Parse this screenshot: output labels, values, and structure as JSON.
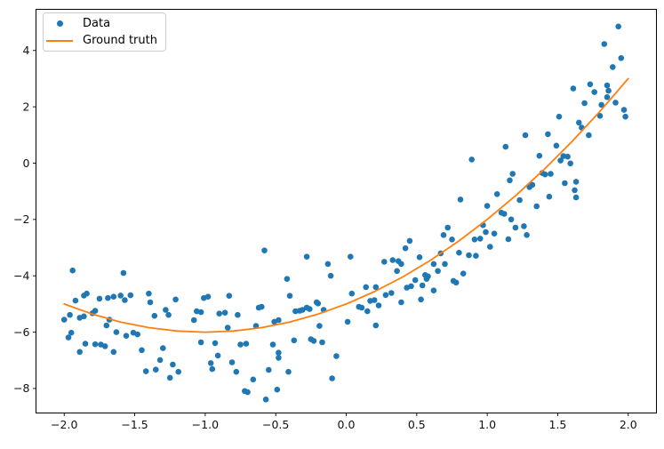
{
  "figure": {
    "background": "#ffffff",
    "legend": {
      "items": [
        {
          "label": "Data",
          "marker": "dot",
          "color": "#1f77b4"
        },
        {
          "label": "Ground truth",
          "marker": "line",
          "color": "#ff7f0e"
        }
      ]
    }
  },
  "chart_data": {
    "type": "scatter",
    "title": "",
    "xlabel": "",
    "ylabel": "",
    "grid": false,
    "legend_position": "upper left",
    "xlim": [
      -2.2,
      2.2
    ],
    "ylim": [
      -8.87,
      5.46
    ],
    "x_ticks": {
      "values": [
        -2.0,
        -1.5,
        -1.0,
        -0.5,
        0.0,
        0.5,
        1.0,
        1.5,
        2.0
      ],
      "labels": [
        "−2.0",
        "−1.5",
        "−1.0",
        "−0.5",
        "0.0",
        "0.5",
        "1.0",
        "1.5",
        "2.0"
      ]
    },
    "y_ticks": {
      "values": [
        -8,
        -6,
        -4,
        -2,
        0,
        2,
        4
      ],
      "labels": [
        "−8",
        "−6",
        "−4",
        "−2",
        "0",
        "2",
        "4"
      ]
    },
    "series": [
      {
        "name": "Data",
        "type": "scatter",
        "color": "#1f77b4",
        "marker_size": 3.3,
        "points": [
          [
            -1.92,
            -4.88
          ],
          [
            -1.86,
            -4.7
          ],
          [
            -1.84,
            -4.63
          ],
          [
            -1.75,
            -4.81
          ],
          [
            -1.69,
            -4.79
          ],
          [
            -1.65,
            -4.74
          ],
          [
            -1.6,
            -4.7
          ],
          [
            -1.57,
            -4.86
          ],
          [
            -1.53,
            -4.69
          ],
          [
            -1.4,
            -4.63
          ],
          [
            -1.39,
            -4.94
          ],
          [
            -1.21,
            -4.84
          ],
          [
            -1.28,
            -5.21
          ],
          [
            -1.36,
            -5.42
          ],
          [
            -1.26,
            -5.39
          ],
          [
            -2.0,
            -5.56
          ],
          [
            -1.96,
            -5.39
          ],
          [
            -1.89,
            -5.49
          ],
          [
            -1.86,
            -5.44
          ],
          [
            -1.8,
            -5.33
          ],
          [
            -1.78,
            -5.24
          ],
          [
            -1.95,
            -6.02
          ],
          [
            -1.97,
            -6.19
          ],
          [
            -1.7,
            -5.76
          ],
          [
            -1.68,
            -5.56
          ],
          [
            -1.63,
            -6.0
          ],
          [
            -1.56,
            -6.13
          ],
          [
            -1.51,
            -6.02
          ],
          [
            -1.48,
            -6.08
          ],
          [
            -1.85,
            -6.41
          ],
          [
            -1.78,
            -6.43
          ],
          [
            -1.74,
            -6.44
          ],
          [
            -1.71,
            -6.5
          ],
          [
            -1.89,
            -6.7
          ],
          [
            -1.65,
            -6.7
          ],
          [
            -1.45,
            -6.64
          ],
          [
            -1.3,
            -6.57
          ],
          [
            -1.32,
            -6.99
          ],
          [
            -1.23,
            -7.15
          ],
          [
            -1.42,
            -7.39
          ],
          [
            -1.35,
            -7.33
          ],
          [
            -1.25,
            -7.62
          ],
          [
            -1.19,
            -7.41
          ],
          [
            -1.94,
            -3.81
          ],
          [
            -1.58,
            -3.9
          ],
          [
            -1.01,
            -4.79
          ],
          [
            -0.98,
            -4.74
          ],
          [
            -0.83,
            -4.71
          ],
          [
            -1.06,
            -5.26
          ],
          [
            -1.03,
            -5.29
          ],
          [
            -1.08,
            -5.57
          ],
          [
            -0.9,
            -5.34
          ],
          [
            -0.86,
            -5.31
          ],
          [
            -0.77,
            -5.39
          ],
          [
            -0.84,
            -5.84
          ],
          [
            -0.64,
            -5.78
          ],
          [
            -0.62,
            -5.13
          ],
          [
            -0.6,
            -5.1
          ],
          [
            -0.51,
            -5.63
          ],
          [
            -0.48,
            -5.57
          ],
          [
            -0.4,
            -4.71
          ],
          [
            -0.36,
            -5.26
          ],
          [
            -0.33,
            -5.24
          ],
          [
            -0.31,
            -5.21
          ],
          [
            -0.28,
            -5.13
          ],
          [
            -0.26,
            -5.18
          ],
          [
            -0.21,
            -4.94
          ],
          [
            -0.2,
            -4.98
          ],
          [
            -0.16,
            -5.21
          ],
          [
            -0.19,
            -5.78
          ],
          [
            -1.03,
            -6.36
          ],
          [
            -0.93,
            -6.39
          ],
          [
            -0.75,
            -6.44
          ],
          [
            -0.71,
            -6.41
          ],
          [
            -0.52,
            -6.44
          ],
          [
            -0.48,
            -6.73
          ],
          [
            -0.48,
            -6.91
          ],
          [
            -0.37,
            -6.29
          ],
          [
            -0.91,
            -6.83
          ],
          [
            -0.96,
            -7.1
          ],
          [
            -0.95,
            -7.31
          ],
          [
            -0.81,
            -7.07
          ],
          [
            -0.78,
            -7.41
          ],
          [
            -0.66,
            -7.68
          ],
          [
            -0.72,
            -8.09
          ],
          [
            -0.7,
            -8.13
          ],
          [
            -0.55,
            -7.34
          ],
          [
            -0.57,
            -8.39
          ],
          [
            -0.49,
            -8.04
          ],
          [
            -0.41,
            -7.41
          ],
          [
            -0.25,
            -6.25
          ],
          [
            -0.23,
            -6.31
          ],
          [
            -0.17,
            -6.36
          ],
          [
            -0.1,
            -7.64
          ],
          [
            -0.07,
            -6.85
          ],
          [
            -0.58,
            -3.1
          ],
          [
            -0.28,
            -3.32
          ],
          [
            -0.13,
            -3.58
          ],
          [
            -0.42,
            -4.11
          ],
          [
            -0.11,
            -4.0
          ],
          [
            0.03,
            -3.32
          ],
          [
            0.01,
            -5.63
          ],
          [
            0.04,
            -4.63
          ],
          [
            0.14,
            -4.4
          ],
          [
            0.21,
            -4.4
          ],
          [
            0.28,
            -4.68
          ],
          [
            0.17,
            -4.89
          ],
          [
            0.2,
            -4.86
          ],
          [
            0.09,
            -5.1
          ],
          [
            0.11,
            -5.13
          ],
          [
            0.15,
            -5.26
          ],
          [
            0.23,
            -5.05
          ],
          [
            0.32,
            -4.61
          ],
          [
            0.39,
            -4.94
          ],
          [
            0.43,
            -4.42
          ],
          [
            0.46,
            -4.37
          ],
          [
            0.53,
            -4.84
          ],
          [
            0.54,
            -4.34
          ],
          [
            0.62,
            -4.52
          ],
          [
            0.21,
            -5.76
          ],
          [
            0.78,
            -4.24
          ],
          [
            0.27,
            -3.5
          ],
          [
            0.33,
            -3.44
          ],
          [
            0.37,
            -3.48
          ],
          [
            0.39,
            -3.58
          ],
          [
            0.36,
            -3.83
          ],
          [
            0.42,
            -3.02
          ],
          [
            0.45,
            -2.76
          ],
          [
            0.49,
            -4.15
          ],
          [
            0.52,
            -3.34
          ],
          [
            0.56,
            -3.97
          ],
          [
            0.58,
            -4.02
          ],
          [
            0.57,
            -4.11
          ],
          [
            0.62,
            -3.58
          ],
          [
            0.65,
            -3.83
          ],
          [
            0.7,
            -3.58
          ],
          [
            0.76,
            -4.18
          ],
          [
            0.67,
            -3.2
          ],
          [
            0.69,
            -2.55
          ],
          [
            0.72,
            -2.29
          ],
          [
            0.75,
            -2.71
          ],
          [
            0.89,
            0.13
          ],
          [
            0.81,
            -1.29
          ],
          [
            1.07,
            -1.1
          ],
          [
            1.0,
            -1.52
          ],
          [
            1.1,
            -1.76
          ],
          [
            1.12,
            -1.8
          ],
          [
            0.91,
            -2.71
          ],
          [
            0.95,
            -2.68
          ],
          [
            0.97,
            -2.2
          ],
          [
            0.99,
            -2.45
          ],
          [
            1.05,
            -2.5
          ],
          [
            1.02,
            -2.97
          ],
          [
            0.8,
            -3.18
          ],
          [
            0.87,
            -3.27
          ],
          [
            0.92,
            -3.29
          ],
          [
            0.83,
            -3.92
          ],
          [
            1.17,
            -2.0
          ],
          [
            1.15,
            -2.7
          ],
          [
            1.2,
            -2.29
          ],
          [
            1.26,
            -2.24
          ],
          [
            1.28,
            -2.55
          ],
          [
            1.23,
            -1.31
          ],
          [
            1.35,
            -1.53
          ],
          [
            1.18,
            -0.38
          ],
          [
            1.16,
            -0.61
          ],
          [
            1.32,
            -0.77
          ],
          [
            1.3,
            -0.85
          ],
          [
            1.39,
            -0.35
          ],
          [
            1.41,
            -0.4
          ],
          [
            1.45,
            -0.38
          ],
          [
            1.37,
            0.26
          ],
          [
            1.49,
            0.62
          ],
          [
            1.13,
            0.58
          ],
          [
            1.27,
            0.99
          ],
          [
            1.43,
            1.03
          ],
          [
            1.54,
            0.25
          ],
          [
            1.57,
            0.23
          ],
          [
            1.59,
            -0.01
          ],
          [
            1.52,
            0.09
          ],
          [
            1.55,
            -0.71
          ],
          [
            1.63,
            -0.66
          ],
          [
            1.62,
            -0.96
          ],
          [
            1.44,
            -1.19
          ],
          [
            1.63,
            -1.22
          ],
          [
            1.51,
            1.65
          ],
          [
            1.65,
            1.44
          ],
          [
            1.67,
            1.26
          ],
          [
            1.72,
            0.99
          ],
          [
            1.61,
            2.65
          ],
          [
            1.69,
            2.13
          ],
          [
            1.73,
            2.8
          ],
          [
            1.76,
            2.52
          ],
          [
            1.81,
            2.07
          ],
          [
            1.85,
            2.34
          ],
          [
            1.8,
            1.68
          ],
          [
            1.85,
            2.76
          ],
          [
            1.86,
            2.57
          ],
          [
            1.91,
            2.15
          ],
          [
            1.93,
            4.85
          ],
          [
            1.83,
            4.23
          ],
          [
            1.95,
            3.73
          ],
          [
            1.89,
            3.41
          ],
          [
            1.97,
            1.89
          ],
          [
            1.98,
            1.65
          ]
        ]
      },
      {
        "name": "Ground truth",
        "type": "line",
        "color": "#ff7f0e",
        "line_width": 1.8,
        "points": [
          [
            -2.0,
            -5.0
          ],
          [
            -1.8,
            -5.36
          ],
          [
            -1.6,
            -5.64
          ],
          [
            -1.4,
            -5.84
          ],
          [
            -1.2,
            -5.96
          ],
          [
            -1.0,
            -6.0
          ],
          [
            -0.8,
            -5.96
          ],
          [
            -0.6,
            -5.84
          ],
          [
            -0.4,
            -5.64
          ],
          [
            -0.2,
            -5.36
          ],
          [
            0.0,
            -5.0
          ],
          [
            0.2,
            -4.56
          ],
          [
            0.4,
            -4.04
          ],
          [
            0.6,
            -3.44
          ],
          [
            0.8,
            -2.76
          ],
          [
            1.0,
            -2.0
          ],
          [
            1.2,
            -1.16
          ],
          [
            1.4,
            -0.24
          ],
          [
            1.6,
            0.76
          ],
          [
            1.8,
            1.84
          ],
          [
            2.0,
            3.0
          ]
        ]
      }
    ]
  }
}
